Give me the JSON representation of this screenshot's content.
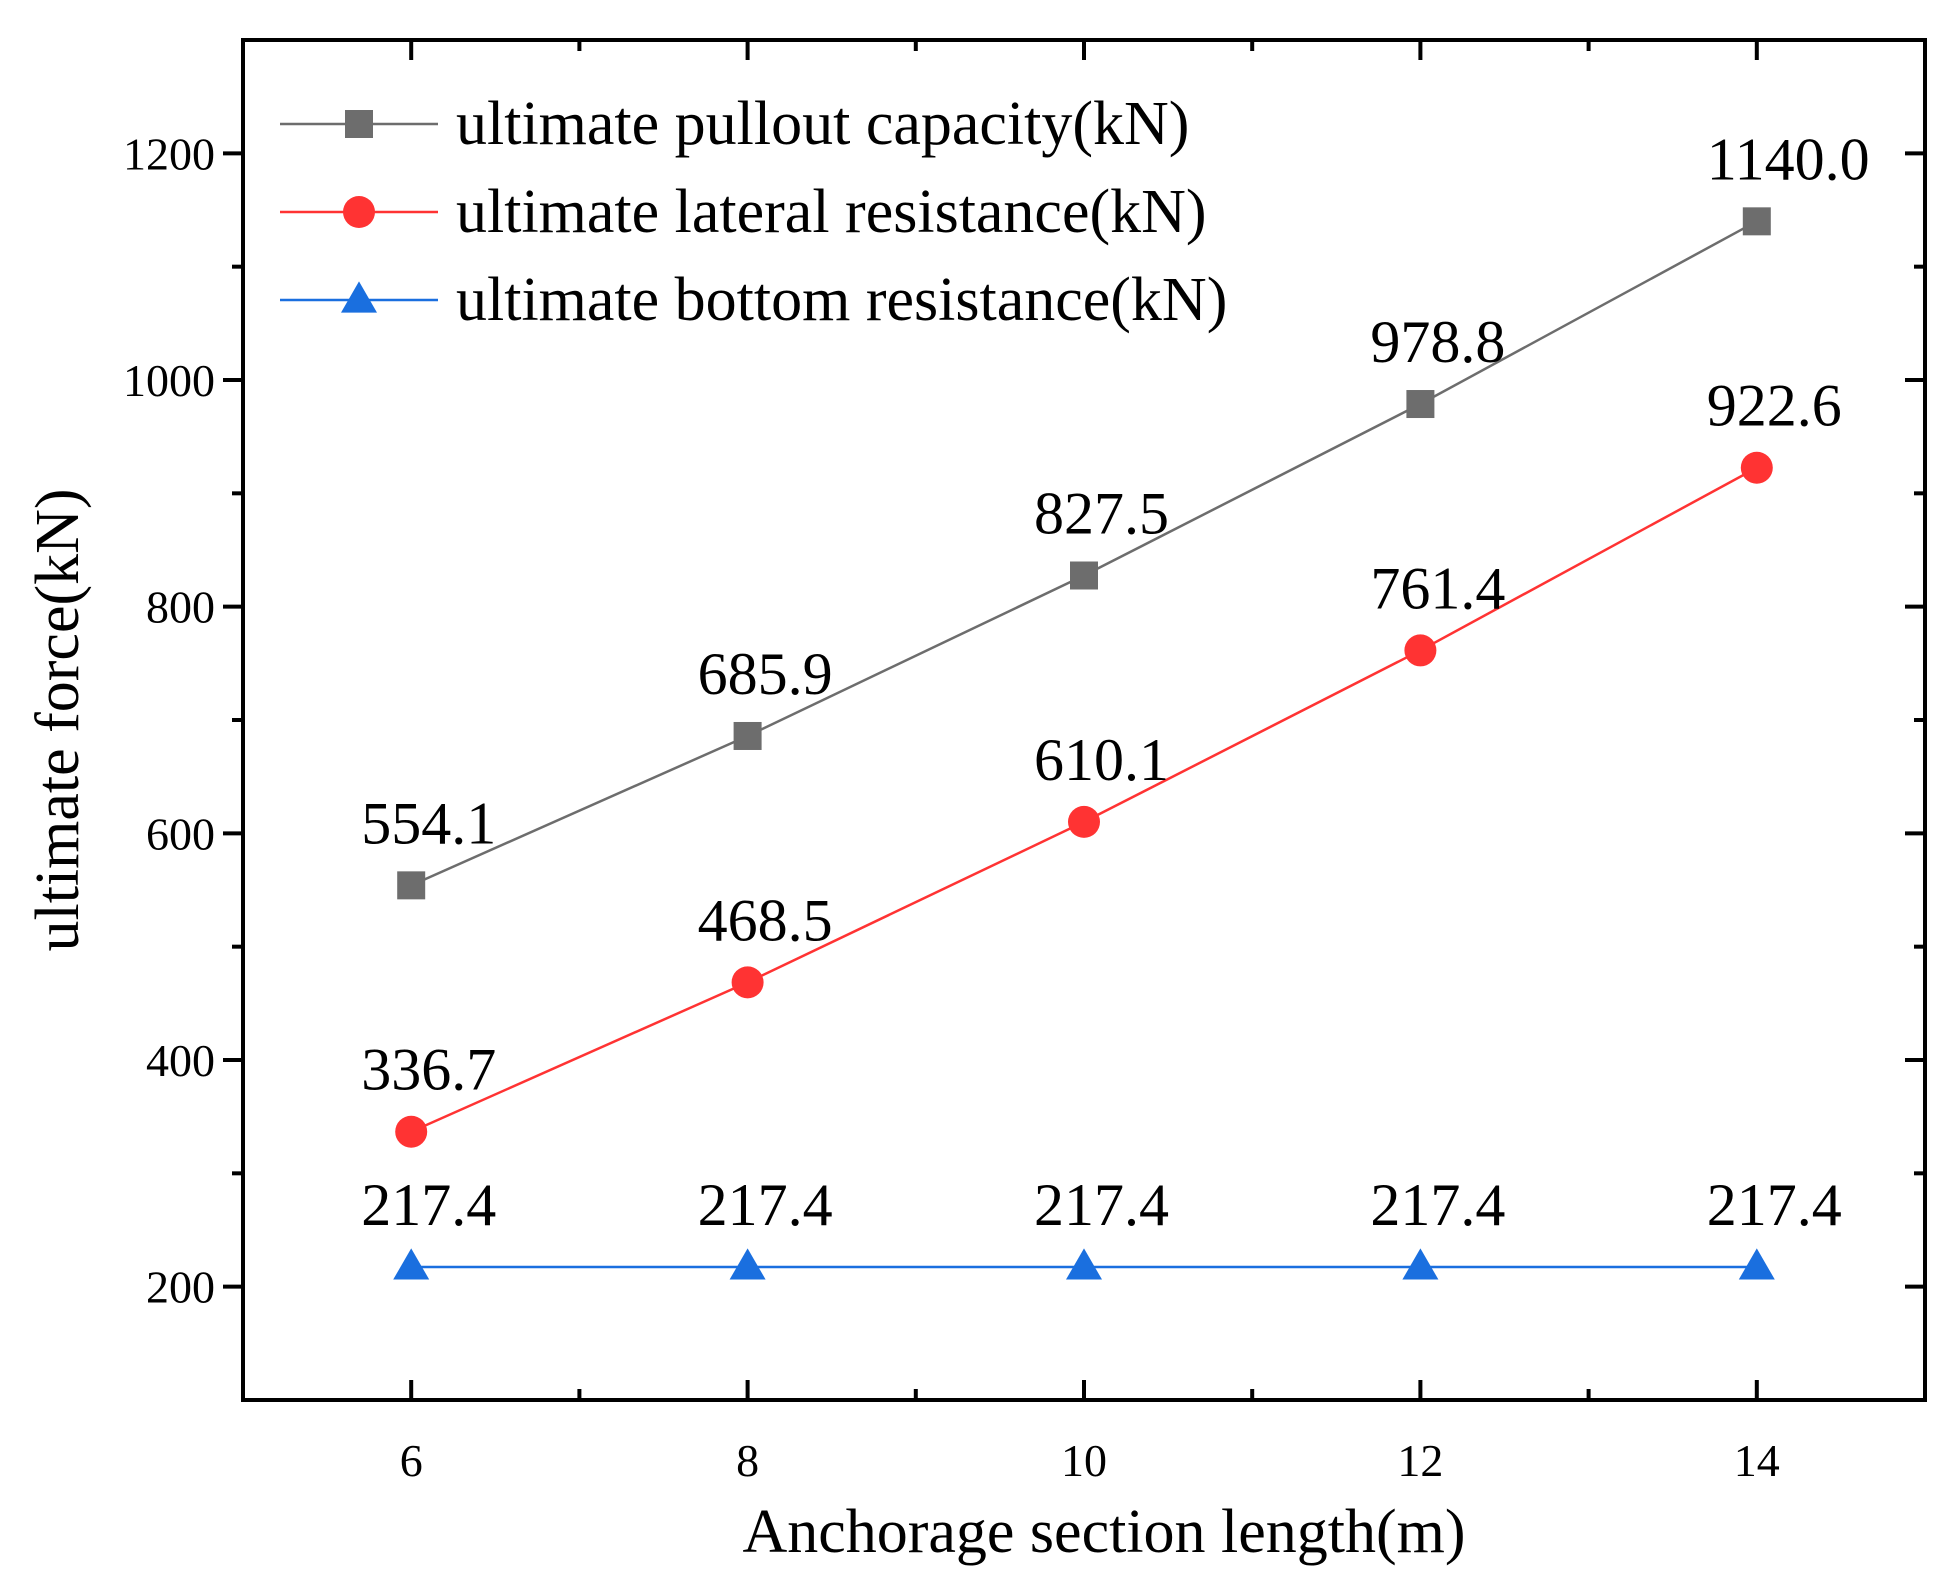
{
  "chart_data": {
    "type": "line",
    "title": "",
    "xlabel": "Anchorage section length(m)",
    "ylabel": "ultimate force(kN)",
    "xlim": [
      5,
      15
    ],
    "ylim": [
      100,
      1300
    ],
    "x_ticks": [
      6,
      8,
      10,
      12,
      14
    ],
    "x_minor_ticks": [
      7,
      9,
      11,
      13
    ],
    "y_ticks": [
      200,
      400,
      600,
      800,
      1000,
      1200
    ],
    "y_minor_ticks": [
      300,
      500,
      700,
      900,
      1100
    ],
    "x_tick_labels": [
      "6",
      "8",
      "10",
      "12",
      "14"
    ],
    "y_tick_labels": [
      "200",
      "400",
      "600",
      "800",
      "1000",
      "1200"
    ],
    "grid": false,
    "legend_position": "top-left",
    "x": [
      6,
      8,
      10,
      12,
      14
    ],
    "series": [
      {
        "name": "ultimate pullout capacity(kN)",
        "color": "#6d6d6d",
        "marker": "square",
        "values": [
          554.1,
          685.9,
          827.5,
          978.8,
          1140.0
        ],
        "labels": [
          "554.1",
          "685.9",
          "827.5",
          "978.8",
          "1140.0"
        ]
      },
      {
        "name": "ultimate lateral resistance(kN)",
        "color": "#ff3333",
        "marker": "circle",
        "values": [
          336.7,
          468.5,
          610.1,
          761.4,
          922.6
        ],
        "labels": [
          "336.7",
          "468.5",
          "610.1",
          "761.4",
          "922.6"
        ]
      },
      {
        "name": "ultimate bottom resistance(kN)",
        "color": "#1a6fdf",
        "marker": "triangle",
        "values": [
          217.4,
          217.4,
          217.4,
          217.4,
          217.4
        ],
        "labels": [
          "217.4",
          "217.4",
          "217.4",
          "217.4",
          "217.4"
        ]
      }
    ]
  }
}
